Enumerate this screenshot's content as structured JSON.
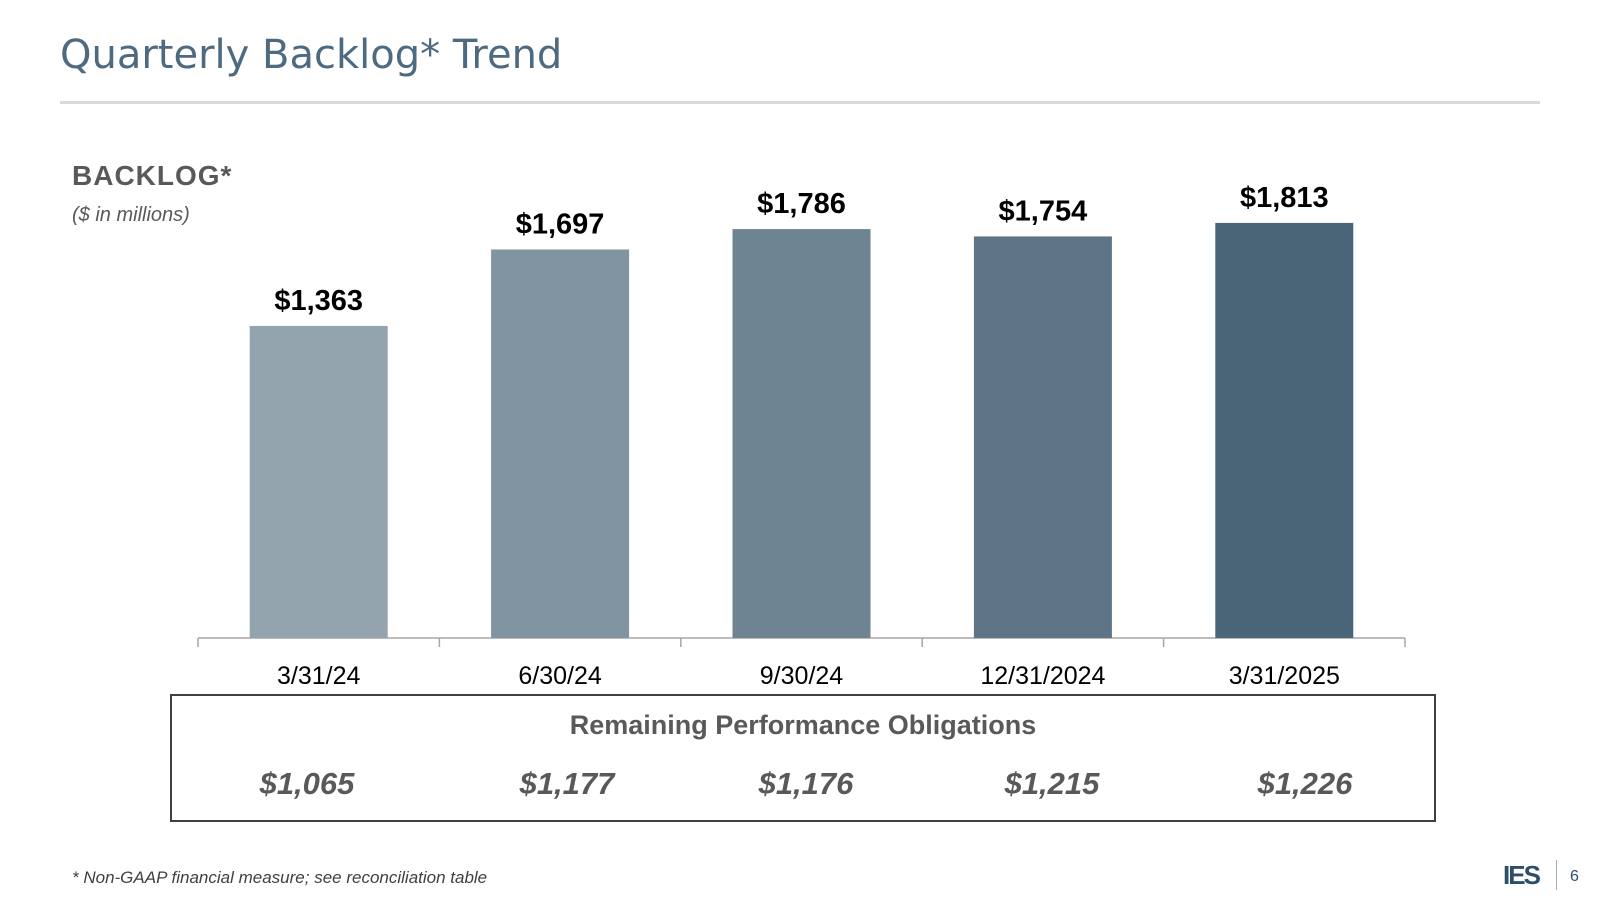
{
  "title": "Quarterly Backlog* Trend",
  "chart_heading": "BACKLOG*",
  "chart_subheading": "($ in millions)",
  "chart_data": {
    "type": "bar",
    "categories": [
      "3/31/24",
      "6/30/24",
      "9/30/24",
      "12/31/2024",
      "3/31/2025"
    ],
    "values": [
      1363,
      1697,
      1786,
      1754,
      1813
    ],
    "value_labels": [
      "$1,363",
      "$1,697",
      "$1,786",
      "$1,754",
      "$1,813"
    ],
    "colors": [
      "#94a4ae",
      "#8095a1",
      "#6e8492",
      "#5e7487",
      "#4a6577"
    ],
    "ylim": [
      0,
      1900
    ],
    "grid": false,
    "legend": "none"
  },
  "rpo": {
    "title": "Remaining Performance Obligations",
    "values": [
      "$1,065",
      "$1,177",
      "$1,176",
      "$1,215",
      "$1,226"
    ]
  },
  "footnote": "* Non-GAAP financial measure; see reconciliation table",
  "logo_text": "IES",
  "page_number": "6",
  "colors": {
    "title": "#4e6a80",
    "text_gray": "#595959",
    "axis": "#a6a6a6"
  }
}
